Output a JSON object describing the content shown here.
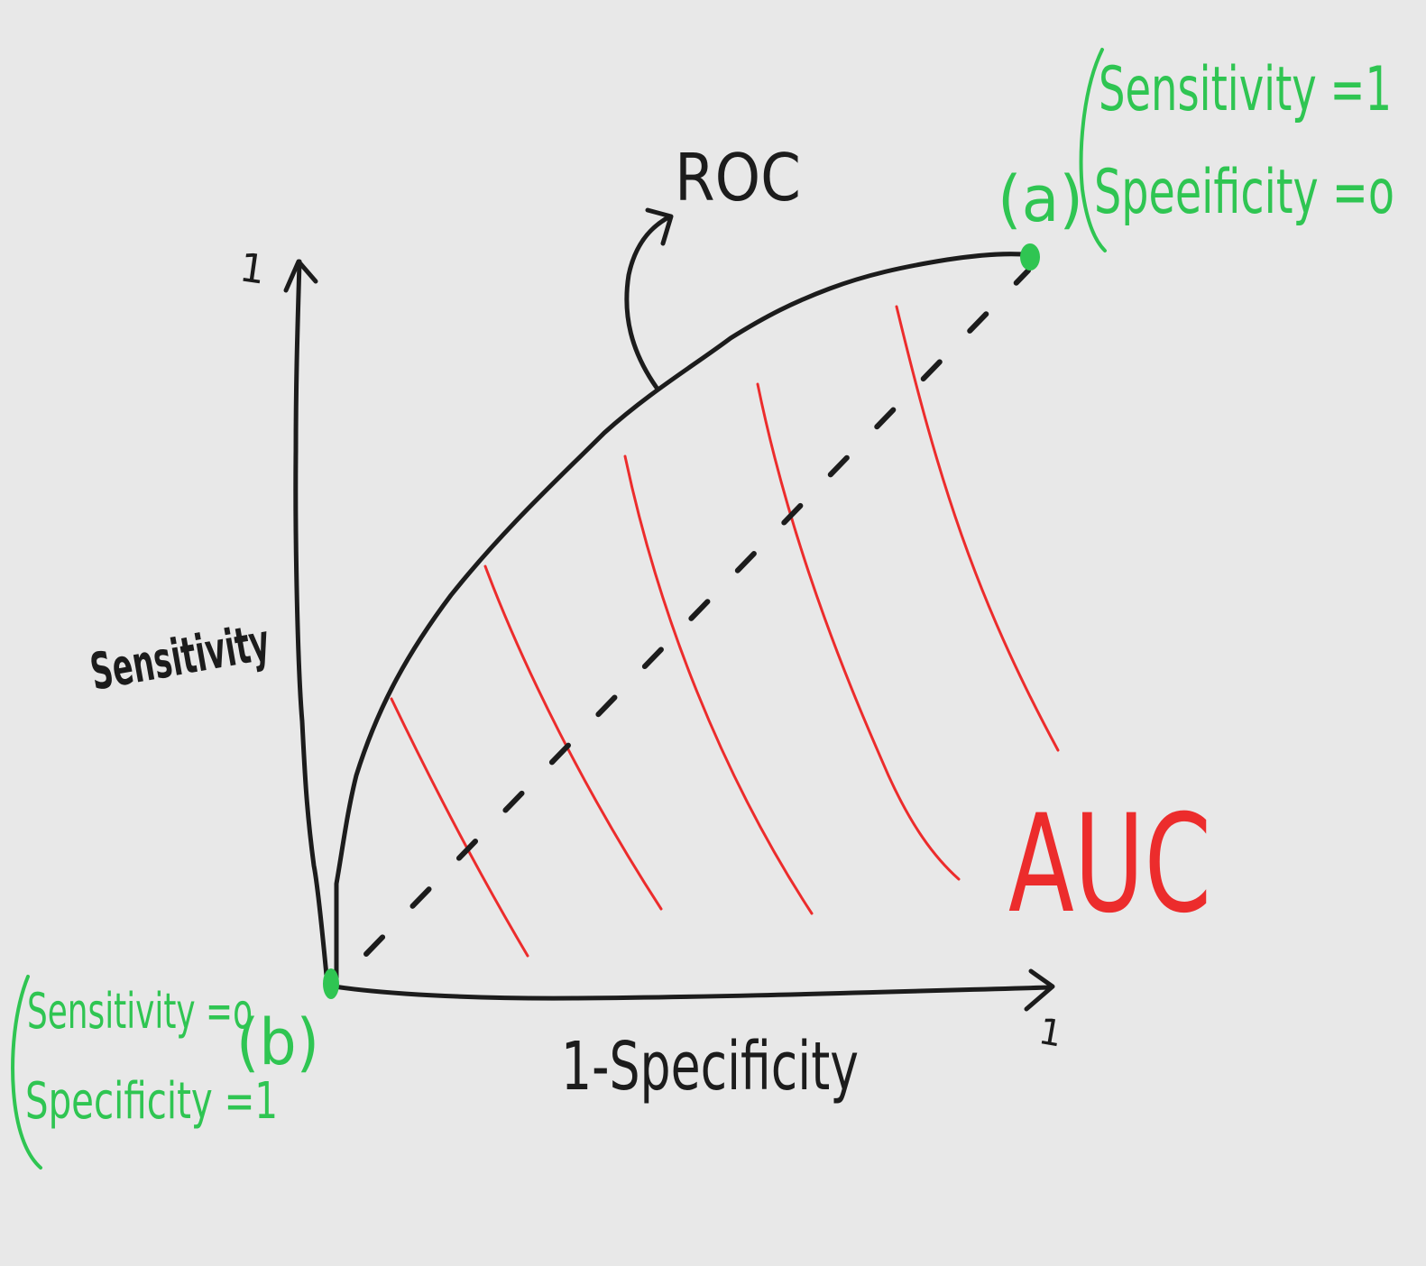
{
  "diagram": {
    "title": "ROC",
    "x_axis": {
      "label": "1-Specificity",
      "max_label": "1"
    },
    "y_axis": {
      "label": "Sensitivity",
      "max_label": "1"
    },
    "area_label": "AUC",
    "point_a": {
      "name": "(a)",
      "line1": "Sensitivity =1",
      "line2": "Speeificity =o"
    },
    "point_b": {
      "name": "(b)",
      "line1": "Sensitivity =o",
      "line2": "Specificity =1"
    },
    "colors": {
      "background": "#e8e8e8",
      "ink": "#1c1c1c",
      "points_and_notes": "#2fc552",
      "auc_hatching": "#ec2c2c"
    }
  }
}
